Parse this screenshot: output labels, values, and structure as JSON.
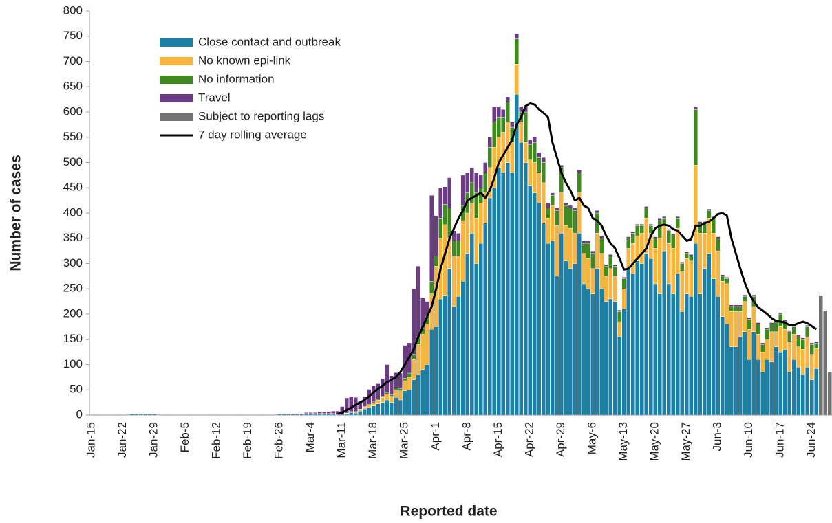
{
  "chart_data": {
    "type": "bar",
    "stacked": true,
    "x_label": "Reported date",
    "y_label": "Number of cases",
    "ylim": [
      0,
      800
    ],
    "yticks": [
      0,
      50,
      100,
      150,
      200,
      250,
      300,
      350,
      400,
      450,
      500,
      550,
      600,
      650,
      700,
      750,
      800
    ],
    "grid": false,
    "legend": "top-left",
    "categories": [
      "Jan-15",
      null,
      null,
      null,
      null,
      null,
      null,
      "Jan-22",
      null,
      null,
      null,
      null,
      null,
      null,
      "Jan-29",
      null,
      null,
      null,
      null,
      null,
      null,
      "Feb-5",
      null,
      null,
      null,
      null,
      null,
      null,
      "Feb-12",
      null,
      null,
      null,
      null,
      null,
      null,
      "Feb-19",
      null,
      null,
      null,
      null,
      null,
      null,
      "Feb-26",
      null,
      null,
      null,
      null,
      null,
      null,
      "Mar-4",
      null,
      null,
      null,
      null,
      null,
      null,
      "Mar-11",
      null,
      null,
      null,
      null,
      null,
      null,
      "Mar-18",
      null,
      null,
      null,
      null,
      null,
      null,
      "Mar-25",
      null,
      null,
      null,
      null,
      null,
      null,
      "Apr-1",
      null,
      null,
      null,
      null,
      null,
      null,
      "Apr-8",
      null,
      null,
      null,
      null,
      null,
      null,
      "Apr-15",
      null,
      null,
      null,
      null,
      null,
      null,
      "Apr-22",
      null,
      null,
      null,
      null,
      null,
      null,
      "Apr-29",
      null,
      null,
      null,
      null,
      null,
      null,
      "May-6",
      null,
      null,
      null,
      null,
      null,
      null,
      "May-13",
      null,
      null,
      null,
      null,
      null,
      null,
      "May-20",
      null,
      null,
      null,
      null,
      null,
      null,
      "May-27",
      null,
      null,
      null,
      null,
      null,
      null,
      "Jun-3",
      null,
      null,
      null,
      null,
      null,
      null,
      "Jun-10",
      null,
      null,
      null,
      null,
      null,
      null,
      "Jun-17",
      null,
      null,
      null,
      null,
      null,
      null,
      "Jun-24",
      null,
      null,
      null,
      null
    ],
    "series": [
      {
        "name": "Close contact and outbreak",
        "type": "bar",
        "color": "#1b7fa6",
        "values": [
          1,
          1,
          1,
          1,
          1,
          1,
          1,
          1,
          1,
          2,
          2,
          2,
          2,
          2,
          2,
          1,
          1,
          1,
          1,
          1,
          1,
          1,
          1,
          1,
          1,
          1,
          1,
          1,
          1,
          1,
          1,
          1,
          1,
          1,
          1,
          1,
          1,
          1,
          1,
          1,
          1,
          1,
          2,
          2,
          2,
          2,
          2,
          2,
          3,
          3,
          3,
          3,
          3,
          3,
          3,
          1,
          2,
          3,
          5,
          4,
          8,
          12,
          15,
          18,
          22,
          25,
          30,
          25,
          35,
          30,
          48,
          50,
          70,
          80,
          90,
          100,
          170,
          175,
          230,
          237,
          290,
          215,
          235,
          265,
          320,
          360,
          300,
          340,
          380,
          430,
          450,
          490,
          480,
          500,
          480,
          635,
          540,
          500,
          455,
          440,
          420,
          380,
          340,
          345,
          275,
          360,
          305,
          290,
          300,
          360,
          260,
          250,
          240,
          290,
          250,
          225,
          230,
          225,
          155,
          210,
          290,
          280,
          305,
          300,
          320,
          310,
          260,
          240,
          325,
          260,
          240,
          280,
          205,
          240,
          235,
          340,
          240,
          290,
          320,
          270,
          235,
          195,
          180,
          135,
          135,
          155,
          165,
          110,
          165,
          110,
          85,
          110,
          105,
          135,
          125,
          130,
          85,
          110,
          95,
          80,
          95,
          70,
          92,
          0,
          0,
          0
        ]
      },
      {
        "name": "No known epi-link",
        "type": "bar",
        "color": "#f7b540",
        "values": [
          0,
          0,
          0,
          0,
          0,
          0,
          0,
          0,
          0,
          0,
          0,
          0,
          0,
          0,
          0,
          0,
          0,
          0,
          0,
          0,
          0,
          0,
          0,
          0,
          0,
          0,
          0,
          0,
          0,
          0,
          0,
          0,
          0,
          0,
          0,
          0,
          0,
          0,
          0,
          0,
          0,
          0,
          0,
          0,
          0,
          0,
          0,
          0,
          0,
          0,
          0,
          0,
          0,
          0,
          0,
          0,
          0,
          1,
          2,
          2,
          3,
          4,
          5,
          6,
          8,
          10,
          12,
          12,
          15,
          18,
          20,
          25,
          40,
          60,
          70,
          80,
          70,
          120,
          120,
          140,
          60,
          100,
          80,
          120,
          80,
          60,
          90,
          80,
          60,
          60,
          80,
          60,
          80,
          80,
          60,
          60,
          40,
          40,
          50,
          60,
          60,
          80,
          50,
          70,
          100,
          80,
          70,
          80,
          60,
          80,
          60,
          60,
          50,
          70,
          70,
          50,
          60,
          50,
          30,
          40,
          40,
          60,
          50,
          60,
          70,
          50,
          70,
          110,
          50,
          80,
          90,
          90,
          80,
          70,
          70,
          155,
          120,
          70,
          70,
          90,
          90,
          70,
          80,
          70,
          70,
          50,
          60,
          60,
          50,
          50,
          40,
          40,
          60,
          30,
          50,
          40,
          60,
          50,
          40,
          50,
          60,
          50,
          40,
          0,
          0,
          0
        ]
      },
      {
        "name": "No information",
        "type": "bar",
        "color": "#3f8a1f",
        "values": [
          0,
          0,
          0,
          0,
          0,
          0,
          0,
          0,
          0,
          0,
          0,
          0,
          0,
          0,
          0,
          0,
          0,
          0,
          0,
          0,
          0,
          0,
          0,
          0,
          0,
          0,
          0,
          0,
          0,
          0,
          0,
          0,
          0,
          0,
          0,
          0,
          0,
          0,
          0,
          0,
          0,
          0,
          0,
          0,
          0,
          0,
          0,
          0,
          0,
          0,
          0,
          0,
          0,
          0,
          0,
          0,
          0,
          0,
          0,
          1,
          1,
          1,
          1,
          2,
          2,
          2,
          3,
          3,
          4,
          5,
          5,
          8,
          10,
          15,
          12,
          15,
          25,
          20,
          40,
          40,
          60,
          30,
          30,
          30,
          40,
          40,
          50,
          30,
          40,
          40,
          50,
          40,
          30,
          40,
          30,
          50,
          20,
          60,
          30,
          40,
          30,
          40,
          20,
          20,
          30,
          50,
          40,
          40,
          45,
          40,
          20,
          30,
          30,
          40,
          30,
          20,
          25,
          20,
          20,
          20,
          20,
          20,
          20,
          15,
          20,
          15,
          20,
          35,
          15,
          25,
          25,
          20,
          15,
          10,
          10,
          110,
          20,
          20,
          15,
          30,
          25,
          10,
          10,
          10,
          10,
          10,
          10,
          20,
          20,
          20,
          15,
          20,
          15,
          20,
          25,
          15,
          20,
          15,
          20,
          20,
          20,
          20,
          10,
          0,
          0,
          0
        ]
      },
      {
        "name": "Travel",
        "type": "bar",
        "color": "#6b3b86",
        "values": [
          0,
          0,
          0,
          0,
          0,
          0,
          0,
          0,
          0,
          0,
          0,
          0,
          0,
          0,
          0,
          0,
          0,
          0,
          0,
          0,
          0,
          0,
          0,
          0,
          0,
          0,
          0,
          0,
          0,
          0,
          0,
          0,
          0,
          0,
          0,
          0,
          0,
          0,
          0,
          0,
          0,
          0,
          0,
          0,
          0,
          0,
          1,
          1,
          2,
          2,
          2,
          3,
          3,
          4,
          5,
          7,
          15,
          30,
          30,
          28,
          15,
          20,
          30,
          32,
          30,
          35,
          55,
          38,
          30,
          30,
          65,
          60,
          130,
          140,
          60,
          30,
          170,
          80,
          60,
          35,
          60,
          20,
          15,
          60,
          40,
          30,
          40,
          25,
          20,
          20,
          30,
          20,
          15,
          10,
          10,
          10,
          10,
          10,
          10,
          10,
          10,
          10,
          10,
          5,
          5,
          5,
          5,
          5,
          5,
          5,
          5,
          5,
          5,
          5,
          5,
          3,
          3,
          3,
          3,
          3,
          3,
          3,
          3,
          3,
          3,
          3,
          3,
          5,
          3,
          3,
          3,
          3,
          3,
          3,
          3,
          5,
          3,
          3,
          3,
          3,
          3,
          3,
          3,
          3,
          3,
          3,
          3,
          3,
          3,
          3,
          3,
          3,
          3,
          3,
          3,
          3,
          3,
          3,
          3,
          3,
          3,
          3,
          3,
          0,
          0,
          0
        ]
      },
      {
        "name": "Subject to reporting lags",
        "type": "bar",
        "color": "#737373",
        "values": [
          0,
          0,
          0,
          0,
          0,
          0,
          0,
          0,
          0,
          0,
          0,
          0,
          0,
          0,
          0,
          0,
          0,
          0,
          0,
          0,
          0,
          0,
          0,
          0,
          0,
          0,
          0,
          0,
          0,
          0,
          0,
          0,
          0,
          0,
          0,
          0,
          0,
          0,
          0,
          0,
          0,
          0,
          0,
          0,
          0,
          0,
          0,
          0,
          0,
          0,
          0,
          0,
          0,
          0,
          0,
          0,
          0,
          0,
          0,
          0,
          0,
          0,
          0,
          0,
          0,
          0,
          0,
          0,
          0,
          0,
          0,
          0,
          0,
          0,
          0,
          0,
          0,
          0,
          0,
          0,
          0,
          0,
          0,
          0,
          0,
          0,
          0,
          0,
          0,
          0,
          0,
          0,
          0,
          0,
          0,
          0,
          0,
          0,
          0,
          0,
          0,
          0,
          0,
          0,
          0,
          0,
          0,
          0,
          0,
          0,
          0,
          0,
          0,
          0,
          0,
          0,
          0,
          0,
          0,
          0,
          0,
          0,
          0,
          0,
          0,
          0,
          0,
          0,
          0,
          0,
          0,
          0,
          0,
          0,
          0,
          0,
          0,
          0,
          0,
          0,
          0,
          0,
          0,
          0,
          0,
          0,
          0,
          0,
          0,
          0,
          0,
          0,
          0,
          0,
          0,
          0,
          0,
          0,
          0,
          0,
          0,
          0,
          0,
          237,
          207,
          85
        ]
      },
      {
        "name": "7 day rolling average",
        "type": "line",
        "color": "#000000",
        "values": [
          null,
          null,
          null,
          null,
          null,
          null,
          null,
          null,
          null,
          null,
          null,
          null,
          null,
          null,
          null,
          null,
          null,
          null,
          null,
          null,
          null,
          null,
          null,
          null,
          null,
          null,
          null,
          null,
          null,
          null,
          null,
          null,
          null,
          null,
          null,
          null,
          null,
          null,
          null,
          null,
          null,
          null,
          null,
          null,
          null,
          null,
          null,
          null,
          null,
          null,
          null,
          null,
          null,
          null,
          null,
          2,
          5,
          10,
          15,
          20,
          25,
          30,
          37,
          45,
          52,
          58,
          65,
          70,
          75,
          85,
          100,
          115,
          130,
          155,
          175,
          195,
          215,
          250,
          290,
          320,
          350,
          370,
          390,
          405,
          425,
          430,
          435,
          440,
          430,
          445,
          470,
          500,
          515,
          530,
          545,
          575,
          590,
          612,
          617,
          615,
          605,
          598,
          590,
          540,
          510,
          480,
          460,
          445,
          425,
          430,
          415,
          410,
          390,
          385,
          375,
          355,
          340,
          330,
          310,
          288,
          290,
          300,
          310,
          320,
          330,
          355,
          370,
          375,
          377,
          375,
          368,
          365,
          355,
          345,
          348,
          375,
          375,
          380,
          383,
          390,
          398,
          400,
          395,
          350,
          320,
          290,
          262,
          240,
          225,
          213,
          207,
          200,
          192,
          186,
          185,
          183,
          178,
          178,
          182,
          185,
          182,
          176,
          170,
          null,
          null,
          null
        ]
      }
    ]
  }
}
